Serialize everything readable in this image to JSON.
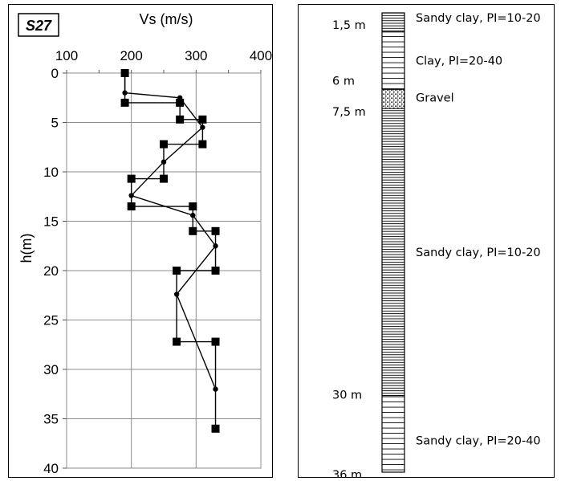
{
  "chart_data": {
    "type": "line",
    "title": "Vs (m/s)",
    "station_label": "S27",
    "ylabel": "h(m)",
    "xlim": [
      100,
      400
    ],
    "ylim": [
      0,
      40
    ],
    "x_ticks": [
      "100",
      "200",
      "300",
      "400"
    ],
    "y_ticks": [
      "0",
      "5",
      "10",
      "15",
      "20",
      "25",
      "30",
      "35",
      "40"
    ],
    "grid": true,
    "series": [
      {
        "marker": "square",
        "points": [
          [
            190,
            0
          ],
          [
            190,
            3
          ],
          [
            275,
            3
          ],
          [
            275,
            4.7
          ],
          [
            310,
            4.7
          ],
          [
            310,
            7.2
          ],
          [
            250,
            7.2
          ],
          [
            250,
            10.7
          ],
          [
            200,
            10.7
          ],
          [
            200,
            13.5
          ],
          [
            295,
            13.5
          ],
          [
            295,
            16
          ],
          [
            330,
            16
          ],
          [
            330,
            20
          ],
          [
            270,
            20
          ],
          [
            270,
            27.2
          ],
          [
            330,
            27.2
          ],
          [
            330,
            36
          ]
        ]
      },
      {
        "marker": "circle",
        "points": [
          [
            190,
            0
          ],
          [
            190,
            2
          ],
          [
            275,
            2.5
          ],
          [
            310,
            5.5
          ],
          [
            250,
            9
          ],
          [
            200,
            12.4
          ],
          [
            295,
            14.4
          ],
          [
            330,
            17.5
          ],
          [
            270,
            22.4
          ],
          [
            330,
            32
          ]
        ]
      }
    ]
  },
  "borehole": {
    "total_depth": 36,
    "layers": [
      {
        "from": 0,
        "to": 1.5,
        "pattern": "dense",
        "description": "Sandy clay, PI=10-20"
      },
      {
        "from": 1.5,
        "to": 6,
        "pattern": "sparse",
        "description": "Clay, PI=20-40"
      },
      {
        "from": 6,
        "to": 7.5,
        "pattern": "dots",
        "description": "Gravel"
      },
      {
        "from": 7.5,
        "to": 30,
        "pattern": "dense",
        "description": "Sandy clay, PI=10-20"
      },
      {
        "from": 30,
        "to": 36,
        "pattern": "sparse",
        "description": "Sandy clay, PI=20-40"
      }
    ],
    "depth_labels": [
      {
        "depth": 1.5,
        "label": "1,5 m"
      },
      {
        "depth": 6,
        "label": "6 m"
      },
      {
        "depth": 7.5,
        "label": "7,5 m"
      },
      {
        "depth": 30,
        "label": "30 m"
      },
      {
        "depth": 36,
        "label": "36 m"
      }
    ]
  }
}
